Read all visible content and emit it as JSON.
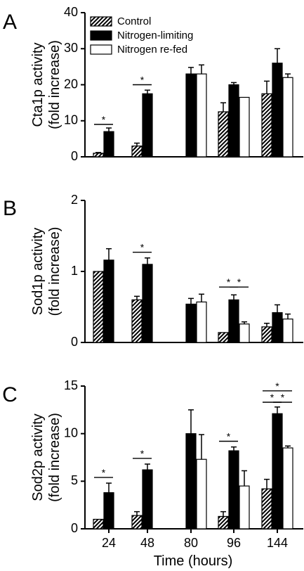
{
  "figure": {
    "xlabel": "Time (hours)",
    "legend": [
      {
        "name": "Control",
        "fill": "hatch"
      },
      {
        "name": "Nitrogen-limiting",
        "fill": "#000000"
      },
      {
        "name": "Nitrogen re-fed",
        "fill": "#ffffff"
      }
    ],
    "colors": {
      "control_hatch": "#000000",
      "limiting": "#000000",
      "refed": "#ffffff"
    }
  },
  "chart_data": [
    {
      "type": "bar",
      "panel": "A",
      "ylabel": [
        "Cta1p activity",
        "(fold increase)"
      ],
      "categories": [
        "24",
        "48",
        "80",
        "96",
        "144"
      ],
      "ylim": [
        0,
        40
      ],
      "yticks": [
        0,
        10,
        20,
        30,
        40
      ],
      "legend_placement": "top-left",
      "series": [
        {
          "name": "Control",
          "values": [
            1,
            3,
            0,
            12.5,
            17.5
          ],
          "errors": [
            0.2,
            0.8,
            0,
            2.5,
            3.5
          ]
        },
        {
          "name": "Nitrogen-limiting",
          "values": [
            7,
            17.5,
            23,
            20,
            26
          ],
          "errors": [
            1,
            1,
            1.8,
            0.6,
            4
          ]
        },
        {
          "name": "Nitrogen re-fed",
          "values": [
            0,
            0,
            23,
            16.5,
            22
          ],
          "errors": [
            0,
            0,
            2.5,
            0,
            1
          ]
        }
      ],
      "significance": [
        {
          "category": "24",
          "from": "Control",
          "to": "Nitrogen-limiting",
          "label": "*",
          "level": 9
        },
        {
          "category": "48",
          "from": "Control",
          "to": "Nitrogen-limiting",
          "label": "*",
          "level": 20
        }
      ]
    },
    {
      "type": "bar",
      "panel": "B",
      "ylabel": [
        "Sod1p activity",
        "(fold increase)"
      ],
      "categories": [
        "24",
        "48",
        "80",
        "96",
        "144"
      ],
      "ylim": [
        0,
        2
      ],
      "yticks": [
        0,
        1,
        2
      ],
      "series": [
        {
          "name": "Control",
          "values": [
            1,
            0.6,
            0,
            0.14,
            0.22
          ],
          "errors": [
            0,
            0.05,
            0,
            0,
            0.05
          ]
        },
        {
          "name": "Nitrogen-limiting",
          "values": [
            1.16,
            1.1,
            0.54,
            0.6,
            0.42
          ],
          "errors": [
            0.16,
            0.09,
            0.08,
            0.07,
            0.11
          ]
        },
        {
          "name": "Nitrogen re-fed",
          "values": [
            0,
            0,
            0.57,
            0.26,
            0.33
          ],
          "errors": [
            0,
            0,
            0.11,
            0.03,
            0.07
          ]
        }
      ],
      "significance": [
        {
          "category": "48",
          "from": "Control",
          "to": "Nitrogen-limiting",
          "label": "*",
          "level": 1.27
        },
        {
          "category": "96",
          "from": "Control",
          "to": "Nitrogen-limiting",
          "label": "*",
          "level": 0.78
        },
        {
          "category": "96",
          "from": "Nitrogen-limiting",
          "to": "Nitrogen re-fed",
          "label": "*",
          "level": 0.78
        }
      ]
    },
    {
      "type": "bar",
      "panel": "C",
      "ylabel": [
        "Sod2p activity",
        "(fold increase)"
      ],
      "categories": [
        "24",
        "48",
        "80",
        "96",
        "144"
      ],
      "ylim": [
        0,
        15
      ],
      "yticks": [
        0,
        5,
        10,
        15
      ],
      "series": [
        {
          "name": "Control",
          "values": [
            1,
            1.4,
            0,
            1.3,
            4.2
          ],
          "errors": [
            0,
            0.4,
            0,
            0.5,
            1
          ]
        },
        {
          "name": "Nitrogen-limiting",
          "values": [
            3.8,
            6.2,
            10,
            8.2,
            12.1
          ],
          "errors": [
            1,
            0.6,
            2.5,
            0.4,
            0.7
          ]
        },
        {
          "name": "Nitrogen re-fed",
          "values": [
            0,
            0,
            7.3,
            4.5,
            8.5
          ],
          "errors": [
            0,
            0,
            2.6,
            1.6,
            0.2
          ]
        }
      ],
      "significance": [
        {
          "category": "24",
          "from": "Control",
          "to": "Nitrogen-limiting",
          "label": "*",
          "level": 5.4
        },
        {
          "category": "48",
          "from": "Control",
          "to": "Nitrogen-limiting",
          "label": "*",
          "level": 7.4
        },
        {
          "category": "96",
          "from": "Control",
          "to": "Nitrogen-limiting",
          "label": "*",
          "level": 9.2
        },
        {
          "category": "144",
          "from": "Control",
          "to": "Nitrogen-limiting",
          "label": "*",
          "level": 13.3
        },
        {
          "category": "144",
          "from": "Nitrogen-limiting",
          "to": "Nitrogen re-fed",
          "label": "*",
          "level": 13.3
        },
        {
          "category": "144",
          "from": "Control",
          "to": "Nitrogen re-fed",
          "label": "*",
          "level": 14.5
        }
      ]
    }
  ]
}
